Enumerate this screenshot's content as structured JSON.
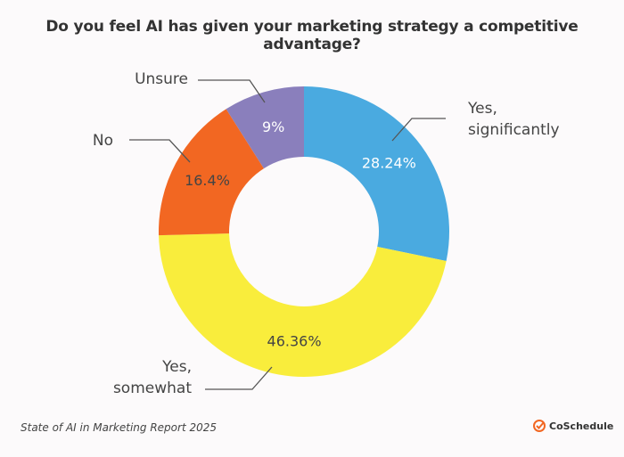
{
  "chart_data": {
    "type": "pie",
    "donut": true,
    "title": "Do you feel AI has given your marketing strategy a competitive advantage?",
    "slices": [
      {
        "label": [
          "Yes,",
          "significantly"
        ],
        "value": 28.24,
        "display": "28.24%",
        "color": "#4aaae0",
        "text_color": "#ffffff"
      },
      {
        "label": [
          "Yes,",
          "somewhat"
        ],
        "value": 46.36,
        "display": "46.36%",
        "color": "#f9ed3c",
        "text_color": "#444444"
      },
      {
        "label": [
          "No"
        ],
        "value": 16.4,
        "display": "16.4%",
        "color": "#f26722",
        "text_color": "#444444"
      },
      {
        "label": [
          "Unsure"
        ],
        "value": 9,
        "display": "9%",
        "color": "#8a7fbc",
        "text_color": "#ffffff"
      }
    ]
  },
  "footer": {
    "source": "State of AI in Marketing Report 2025",
    "brand": "CoSchedule",
    "brand_color": "#f26722"
  }
}
